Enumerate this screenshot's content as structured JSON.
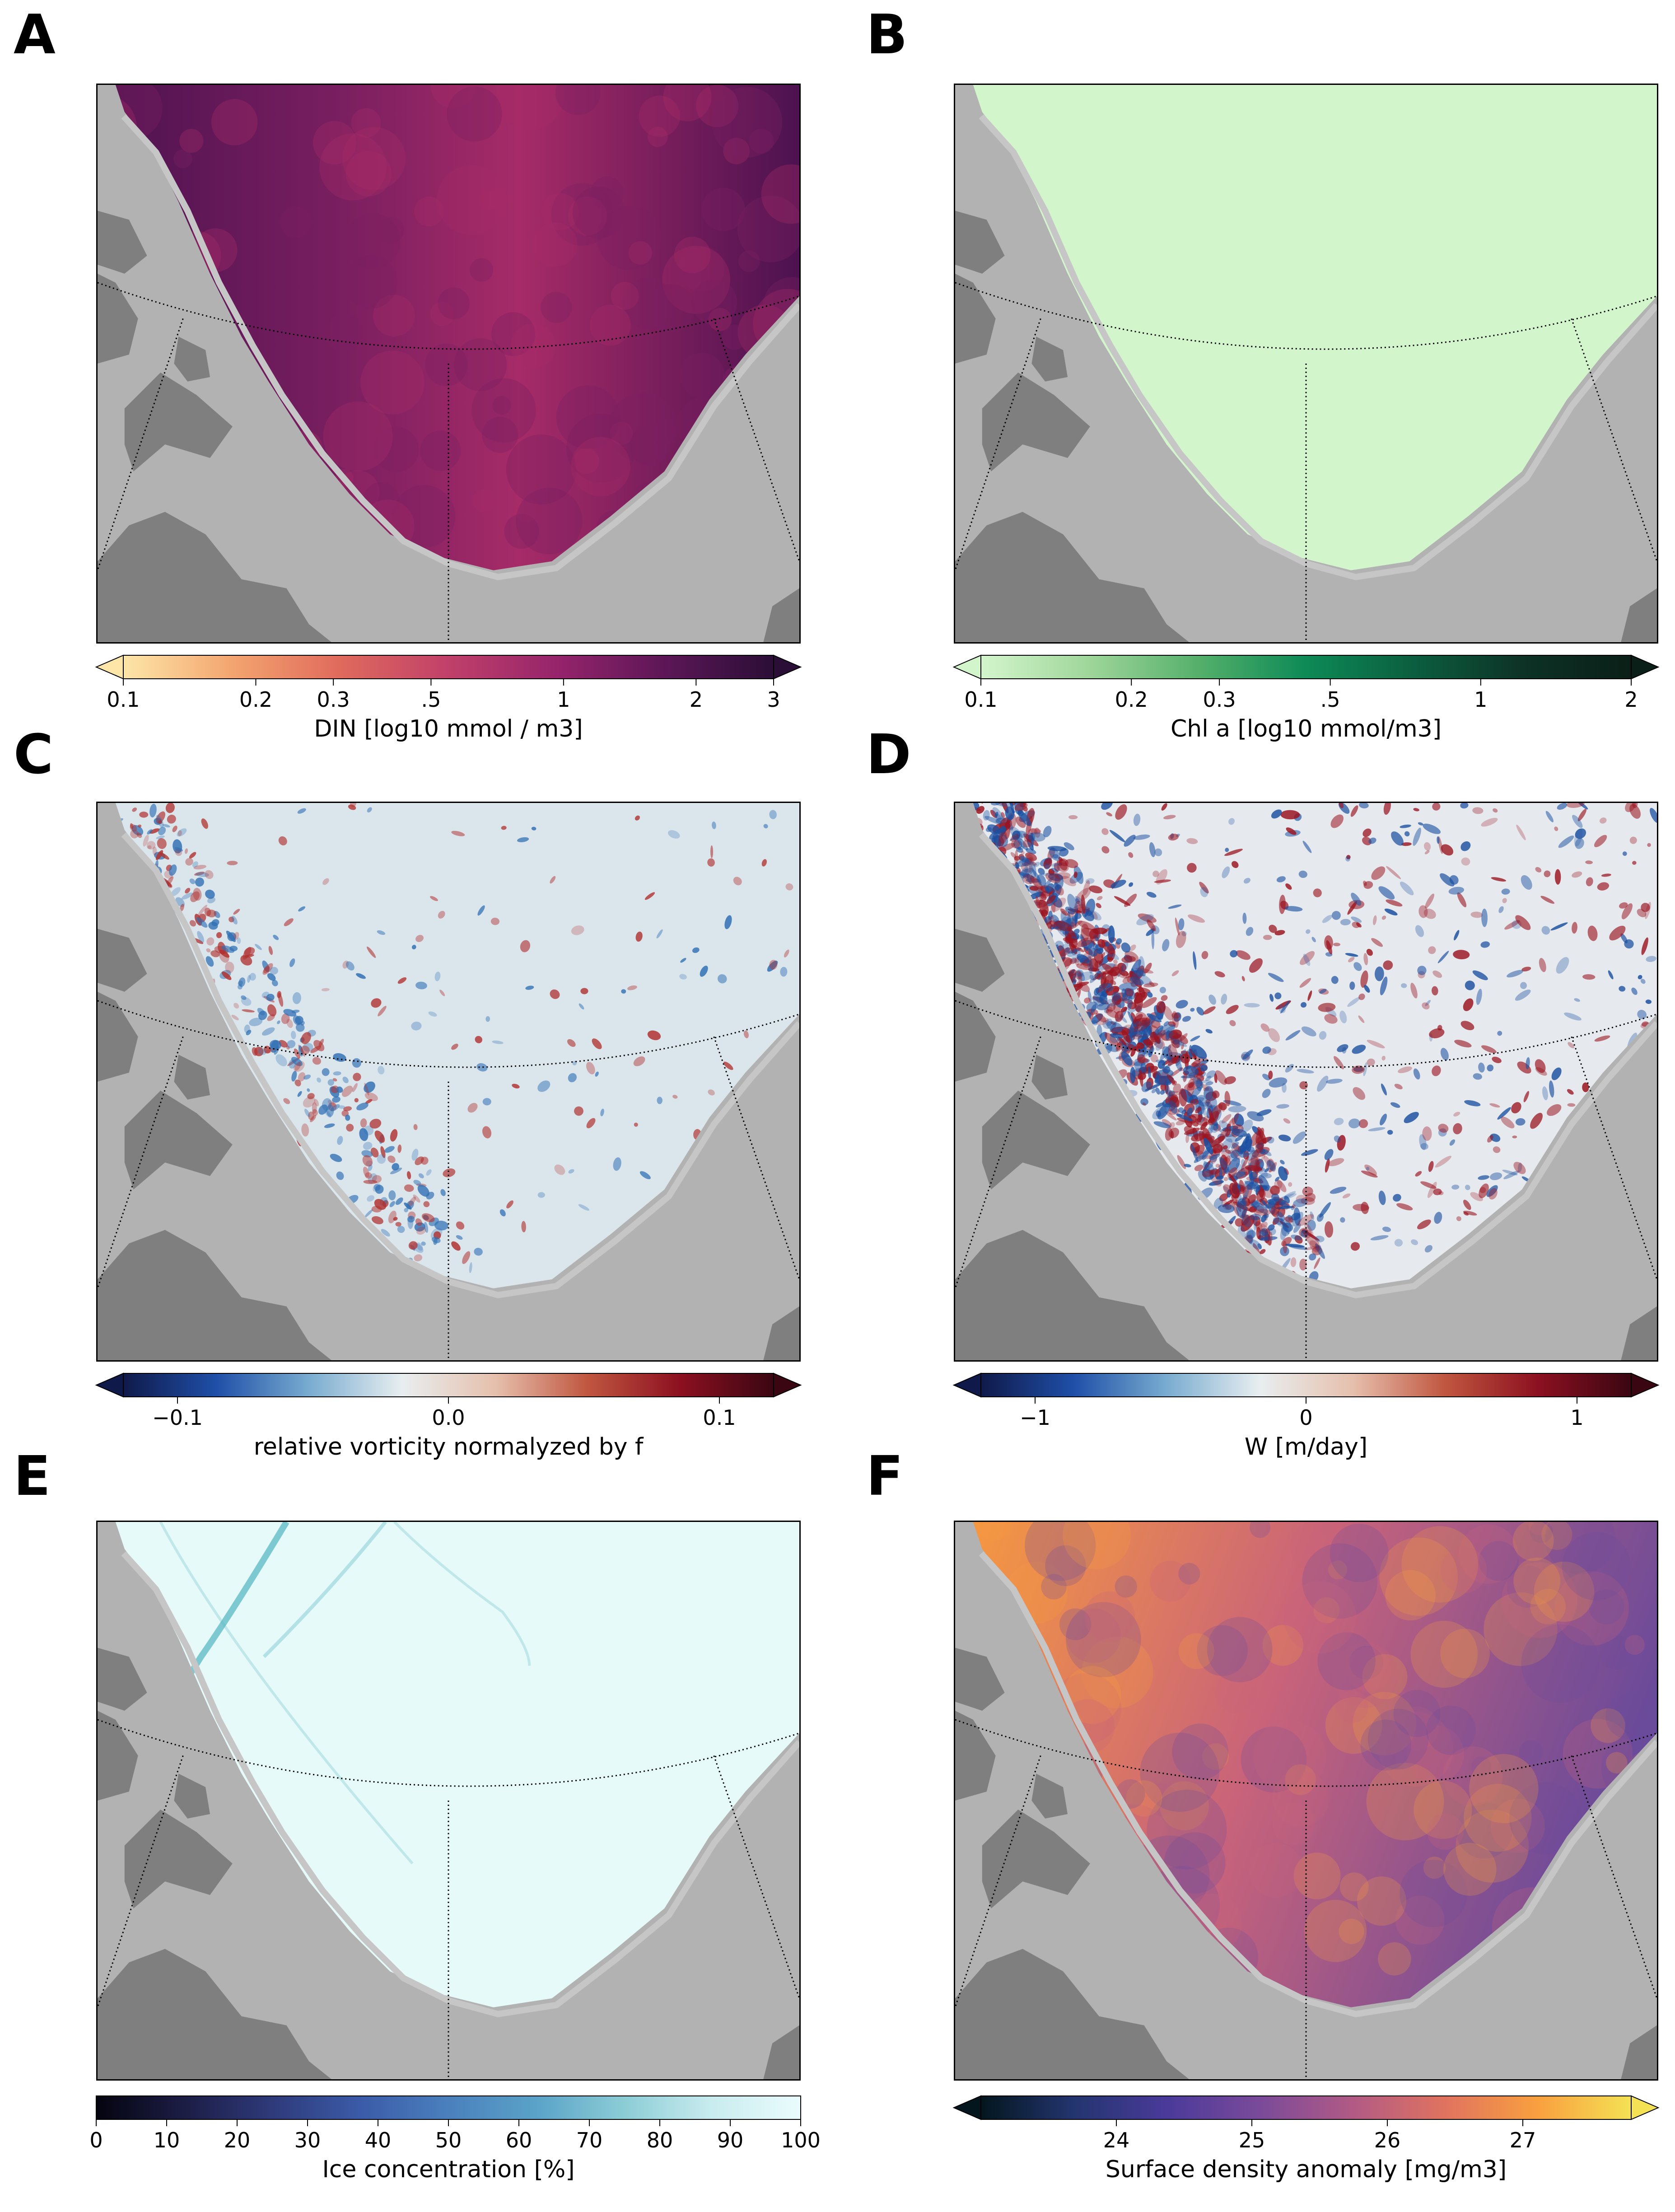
{
  "chart_data": [
    {
      "panel": "A",
      "type": "heatmap",
      "colorbar": {
        "label": "DIN [log10 mmol / m3]",
        "scale": "log",
        "range": [
          0.1,
          3
        ],
        "ticks": [
          0.1,
          0.2,
          0.3,
          0.5,
          1,
          2,
          3
        ],
        "tick_labels": [
          "0.1",
          "0.2",
          "0.3",
          ".5",
          "1",
          "2",
          "3"
        ],
        "extend": "both",
        "colors": [
          "#fde6a8",
          "#f3a56f",
          "#e06a5c",
          "#c0406a",
          "#96246b",
          "#5c1657",
          "#2b0e36"
        ]
      },
      "field_colors": [
        "#a62b68",
        "#7a1f60",
        "#4d1250"
      ],
      "grid": "dotted meridians and parallel"
    },
    {
      "panel": "B",
      "type": "heatmap",
      "colorbar": {
        "label": "Chl a [log10 mmol/m3]",
        "scale": "log",
        "range": [
          0.1,
          2
        ],
        "ticks": [
          0.1,
          0.2,
          0.3,
          0.5,
          1,
          2
        ],
        "tick_labels": [
          "0.1",
          "0.2",
          "0.3",
          ".5",
          "1",
          "2"
        ],
        "extend": "both",
        "colors": [
          "#d3f5cc",
          "#9fd69a",
          "#55b06b",
          "#0d8a56",
          "#0b5e3f",
          "#0d3226",
          "#0a1f17"
        ]
      },
      "field_colors": [
        "#d3f5cc"
      ],
      "grid": "dotted meridians and parallel"
    },
    {
      "panel": "C",
      "type": "heatmap",
      "colorbar": {
        "label": "relative vorticity normalyzed by f",
        "scale": "linear",
        "range": [
          -0.12,
          0.12
        ],
        "ticks": [
          -0.1,
          0.0,
          0.1
        ],
        "tick_labels": [
          "−0.1",
          "0.0",
          "0.1"
        ],
        "extend": "both",
        "colors": [
          "#0f1a4a",
          "#1f4fa8",
          "#79acd0",
          "#e8eef0",
          "#e6c0ad",
          "#c0563f",
          "#8c1020",
          "#3a0612"
        ]
      },
      "field_colors": [
        "#dbe6ec",
        "#2f6fb4",
        "#b0312f"
      ],
      "grid": "dotted meridians and parallel"
    },
    {
      "panel": "D",
      "type": "heatmap",
      "colorbar": {
        "label": "W [m/day]",
        "scale": "linear",
        "range": [
          -1.2,
          1.2
        ],
        "ticks": [
          -1,
          0,
          1
        ],
        "tick_labels": [
          "−1",
          "0",
          "1"
        ],
        "extend": "both",
        "colors": [
          "#0f1a4a",
          "#1f4fa8",
          "#79acd0",
          "#e8eef0",
          "#e6c0ad",
          "#c0563f",
          "#8c1020",
          "#3a0612"
        ]
      },
      "field_colors": [
        "#e6eaee",
        "#1a4fa0",
        "#9a1420"
      ],
      "grid": "dotted meridians and parallel"
    },
    {
      "panel": "E",
      "type": "heatmap",
      "colorbar": {
        "label": "Ice concentration [%]",
        "scale": "linear",
        "range": [
          0,
          100
        ],
        "ticks": [
          0,
          10,
          20,
          30,
          40,
          50,
          60,
          70,
          80,
          90,
          100
        ],
        "tick_labels": [
          "0",
          "10",
          "20",
          "30",
          "40",
          "50",
          "60",
          "70",
          "80",
          "90",
          "100"
        ],
        "extend": "neither",
        "colors": [
          "#04040f",
          "#1c1d45",
          "#2e3a7a",
          "#3b5ba8",
          "#4a80bd",
          "#5aa3c8",
          "#8ccdd6",
          "#c9ecef",
          "#eafcfd"
        ]
      },
      "field_colors": [
        "#e6fafa",
        "#4fb3bf"
      ],
      "grid": "dotted meridians and parallel"
    },
    {
      "panel": "F",
      "type": "heatmap",
      "colorbar": {
        "label": "Surface density anomaly [mg/m3]",
        "scale": "linear",
        "range": [
          23,
          27.8
        ],
        "ticks": [
          24,
          25,
          26,
          27
        ],
        "tick_labels": [
          "24",
          "25",
          "26",
          "27"
        ],
        "extend": "both",
        "colors": [
          "#03161e",
          "#23356f",
          "#4a3a9a",
          "#7a4a9a",
          "#b15a85",
          "#e0735f",
          "#f9a03f",
          "#f4e254"
        ]
      },
      "field_colors": [
        "#f79a3e",
        "#c9637a",
        "#6a4a9a"
      ],
      "grid": "dotted meridians and parallel"
    }
  ]
}
